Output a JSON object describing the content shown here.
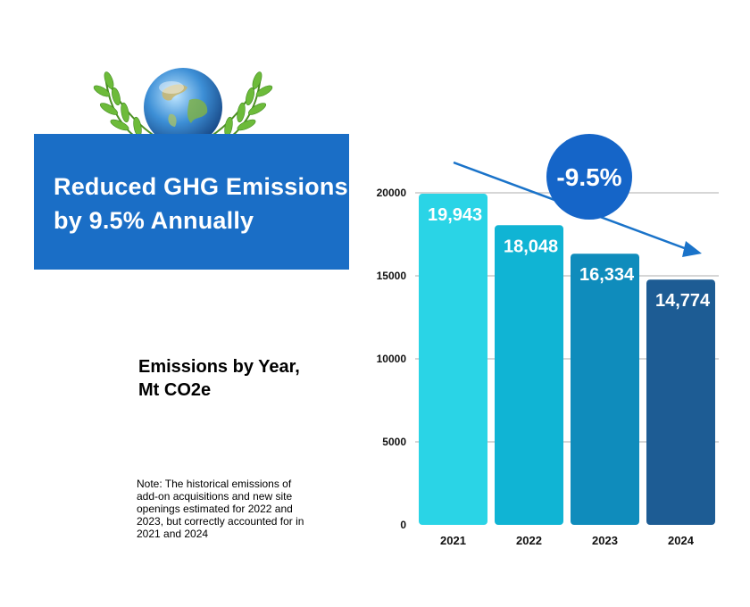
{
  "banner": {
    "title": "Reduced GHG Emissions\nby 9.5% Annually"
  },
  "subtitle": "Emissions by Year,\nMt CO2e",
  "note": "Note: The historical emissions of add-on acquisitions and new site openings estimated for 2022 and 2023, but correctly accounted for in 2021 and 2024",
  "emblem": {
    "icon": "globe-laurel-icon"
  },
  "colors": {
    "banner": "#1a6ec6",
    "badge": "#1565c8",
    "arrow": "#1a73c9",
    "grid": "#c8c8c8",
    "bars": [
      "#2ad4e6",
      "#10b4d4",
      "#0f8cbc",
      "#1d5c94"
    ]
  },
  "chart_data": {
    "type": "bar",
    "categories": [
      "2021",
      "2022",
      "2023",
      "2024"
    ],
    "values": [
      19943,
      18048,
      16334,
      14774
    ],
    "value_labels": [
      "19,943",
      "18,048",
      "16,334",
      "14,774"
    ],
    "yticks": [
      0,
      5000,
      10000,
      15000,
      20000
    ],
    "ylim": [
      0,
      20000
    ],
    "grid": true,
    "annotation": {
      "text": "-9.5%",
      "arrow": "downward trend from 2021 to 2024"
    },
    "title": "",
    "xlabel": "",
    "ylabel": ""
  }
}
